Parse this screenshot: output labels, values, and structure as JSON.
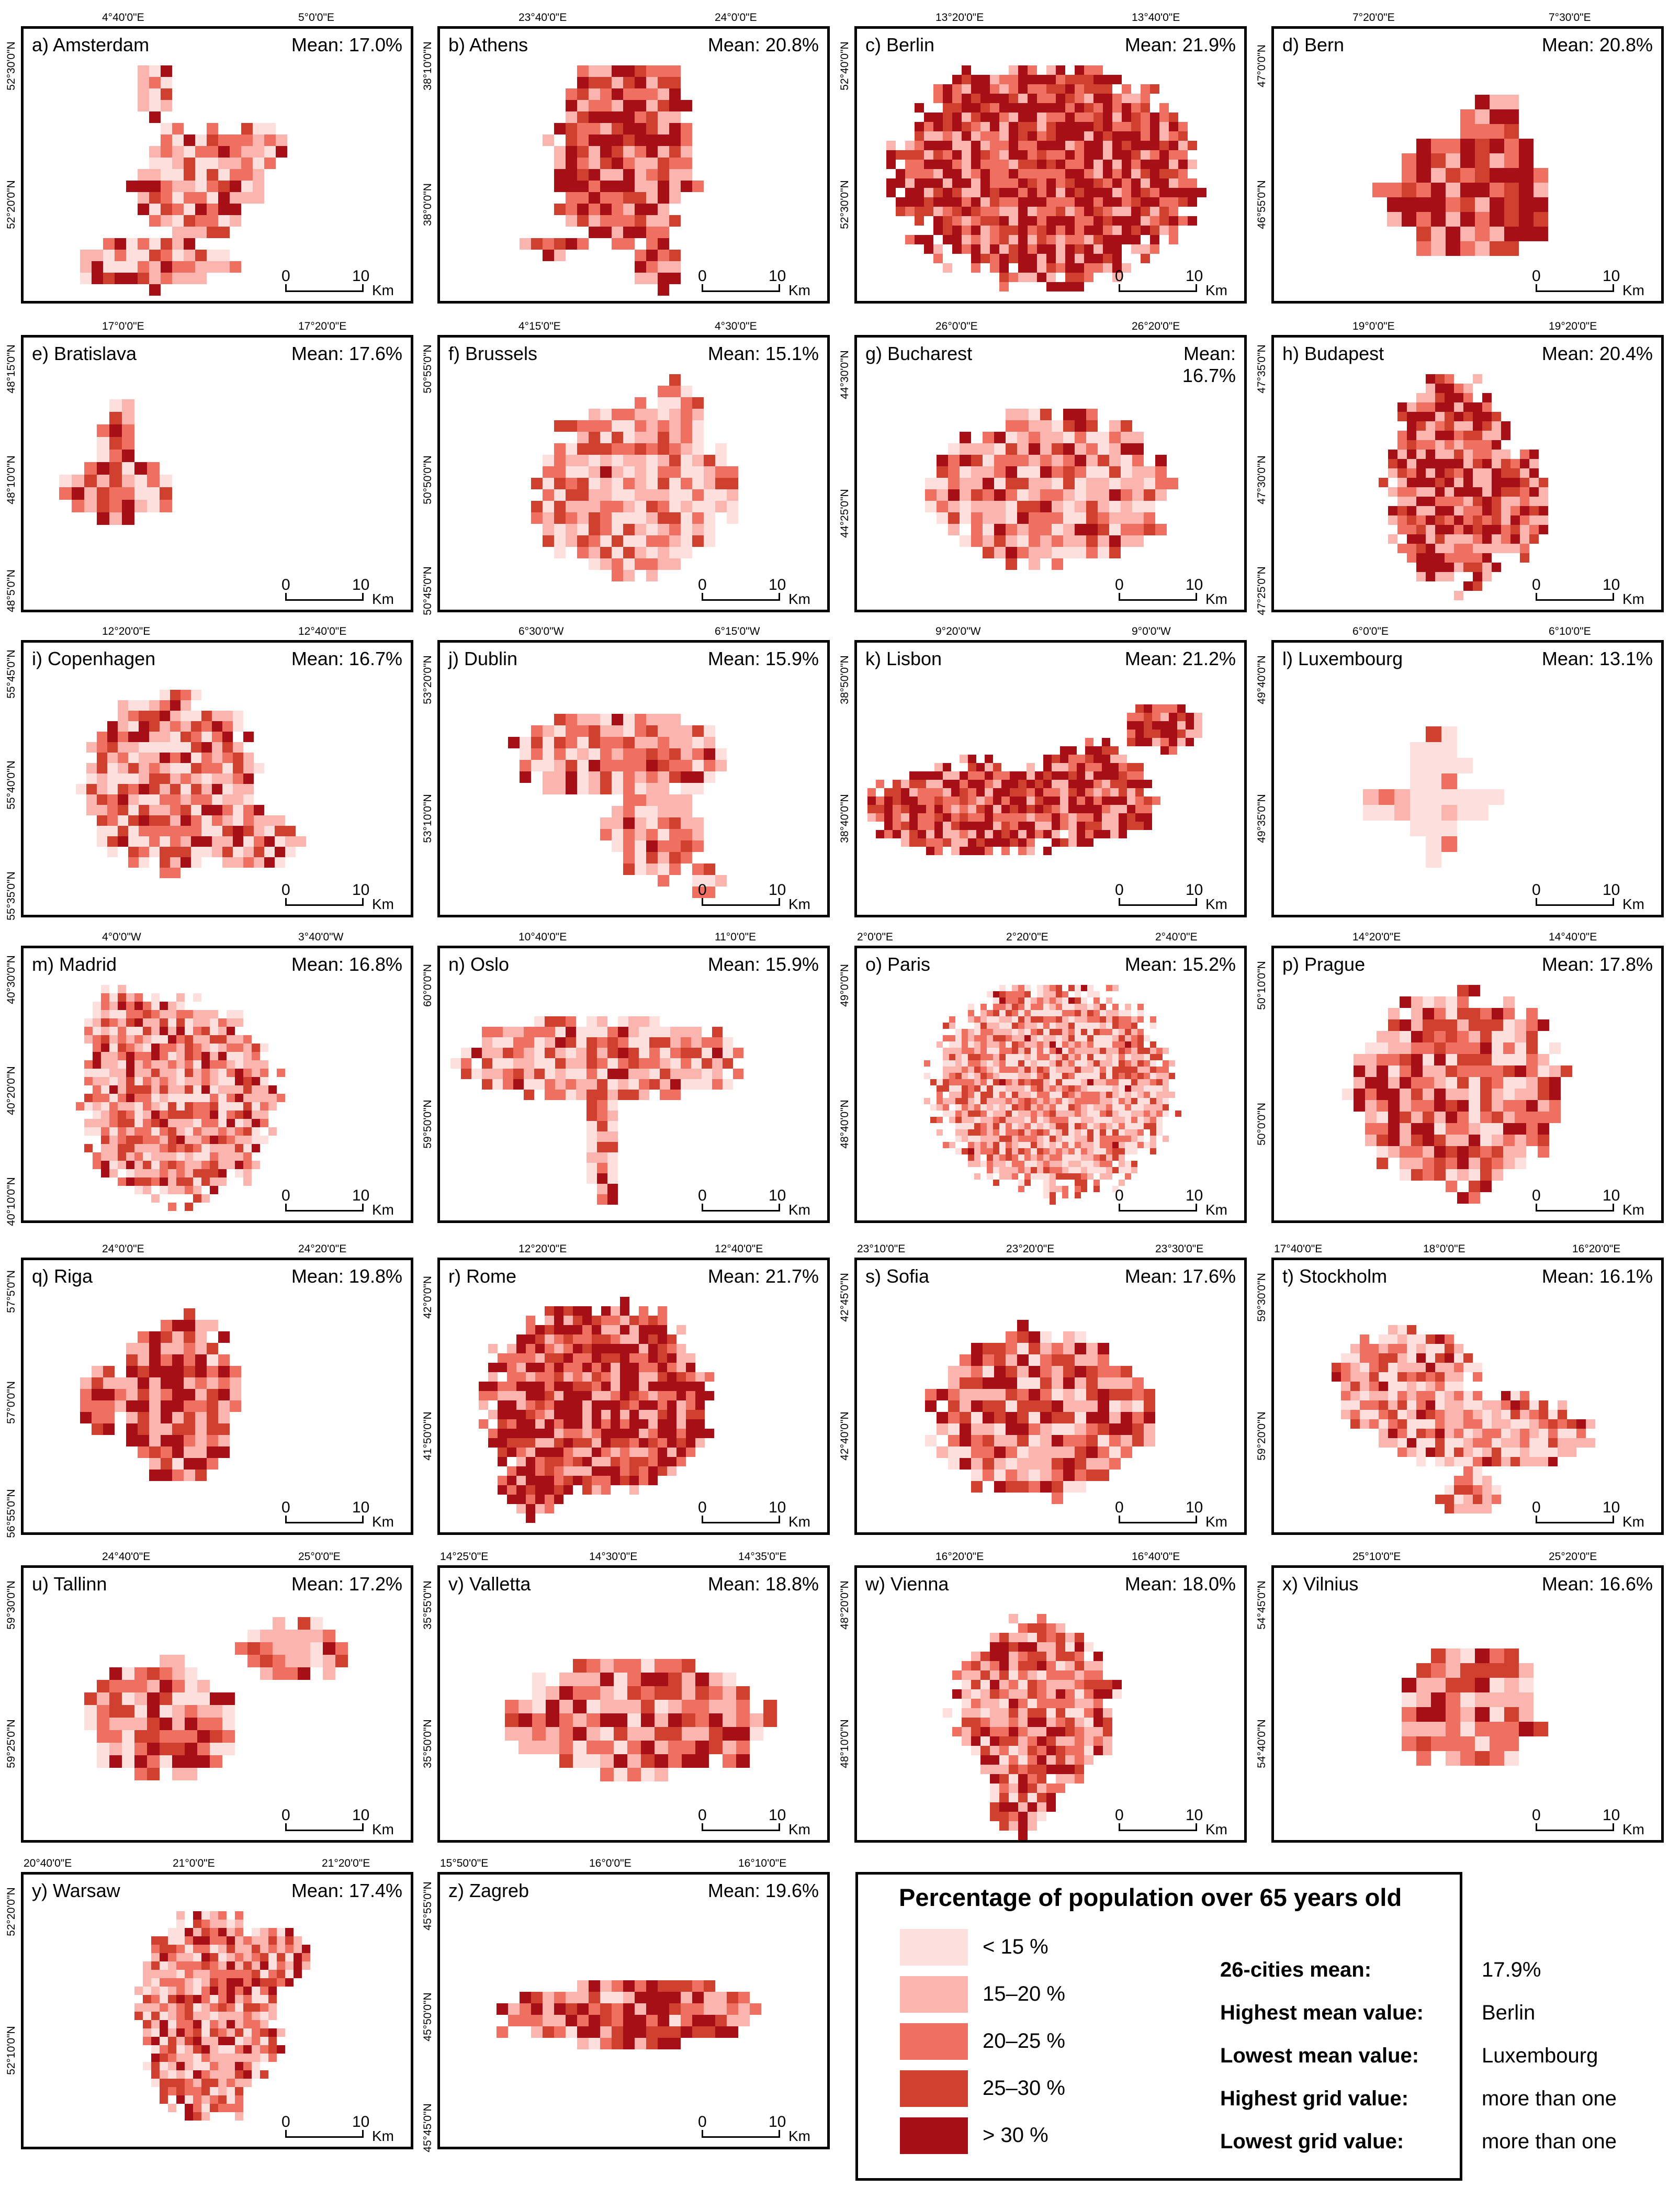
{
  "colors": {
    "c1": "#fde0dd",
    "c2": "#fbb4ae",
    "c3": "#ef6f61",
    "c4": "#d0402f",
    "c5": "#a50f15"
  },
  "cities": [
    {
      "label": "a) Amsterdam",
      "mean": "Mean: 17.0%",
      "lon": [
        "4°40'0\"E",
        "5°0'0\"E"
      ],
      "lat": [
        "52°30'0\"N",
        "52°20'0\"N"
      ],
      "scale_0": "0",
      "scale_10": "10",
      "scale_unit": "Km",
      "shape": "amsterdam"
    },
    {
      "label": "b) Athens",
      "mean": "Mean: 20.8%",
      "lon": [
        "23°40'0\"E",
        "24°0'0\"E"
      ],
      "lat": [
        "38°10'0\"N",
        "38°0'0\"N"
      ],
      "scale_0": "0",
      "scale_10": "10",
      "scale_unit": "Km",
      "shape": "athens"
    },
    {
      "label": "c) Berlin",
      "mean": "Mean: 21.9%",
      "lon": [
        "13°20'0\"E",
        "13°40'0\"E"
      ],
      "lat": [
        "52°40'0\"N",
        "52°30'0\"N"
      ],
      "scale_0": "0",
      "scale_10": "10",
      "scale_unit": "Km",
      "shape": "berlin"
    },
    {
      "label": "d) Bern",
      "mean": "Mean: 20.8%",
      "lon": [
        "7°20'0\"E",
        "7°30'0\"E"
      ],
      "lat": [
        "47°0'0\"N",
        "46°55'0\"N"
      ],
      "scale_0": "0",
      "scale_10": "10",
      "scale_unit": "Km",
      "shape": "bern"
    },
    {
      "label": "e) Bratislava",
      "mean": "Mean: 17.6%",
      "lon": [
        "17°0'0\"E",
        "17°20'0\"E"
      ],
      "lat": [
        "48°15'0\"N",
        "48°10'0\"N",
        "48°5'0\"N"
      ],
      "scale_0": "0",
      "scale_10": "10",
      "scale_unit": "Km",
      "shape": "bratislava"
    },
    {
      "label": "f) Brussels",
      "mean": "Mean: 15.1%",
      "lon": [
        "4°15'0\"E",
        "4°30'0\"E"
      ],
      "lat": [
        "50°55'0\"N",
        "50°50'0\"N",
        "50°45'0\"N"
      ],
      "scale_0": "0",
      "scale_10": "10",
      "scale_unit": "Km",
      "shape": "brussels"
    },
    {
      "label": "g) Bucharest",
      "mean": "Mean: 16.7%",
      "lon": [
        "26°0'0\"E",
        "26°20'0\"E"
      ],
      "lat": [
        "44°30'0\"N",
        "44°25'0\"N"
      ],
      "scale_0": "0",
      "scale_10": "10",
      "scale_unit": "Km",
      "shape": "bucharest"
    },
    {
      "label": "h) Budapest",
      "mean": "Mean: 20.4%",
      "lon": [
        "19°0'0\"E",
        "19°20'0\"E"
      ],
      "lat": [
        "47°35'0\"N",
        "47°30'0\"N",
        "47°25'0\"N"
      ],
      "scale_0": "0",
      "scale_10": "10",
      "scale_unit": "Km",
      "shape": "budapest"
    },
    {
      "label": "i) Copenhagen",
      "mean": "Mean: 16.7%",
      "lon": [
        "12°20'0\"E",
        "12°40'0\"E"
      ],
      "lat": [
        "55°45'0\"N",
        "55°40'0\"N",
        "55°35'0\"N"
      ],
      "scale_0": "0",
      "scale_10": "10",
      "scale_unit": "Km",
      "shape": "copenhagen"
    },
    {
      "label": "j) Dublin",
      "mean": "Mean: 15.9%",
      "lon": [
        "6°30'0\"W",
        "6°15'0\"W"
      ],
      "lat": [
        "53°20'0\"N",
        "53°10'0\"N"
      ],
      "scale_0": "0",
      "scale_10": "10",
      "scale_unit": "Km",
      "shape": "dublin"
    },
    {
      "label": "k) Lisbon",
      "mean": "Mean: 21.2%",
      "lon": [
        "9°20'0\"W",
        "9°0'0\"W"
      ],
      "lat": [
        "38°50'0\"N",
        "38°40'0\"N"
      ],
      "scale_0": "0",
      "scale_10": "10",
      "scale_unit": "Km",
      "shape": "lisbon"
    },
    {
      "label": "l) Luxembourg",
      "mean": "Mean: 13.1%",
      "lon": [
        "6°0'0\"E",
        "6°10'0\"E"
      ],
      "lat": [
        "49°40'0\"N",
        "49°35'0\"N"
      ],
      "scale_0": "0",
      "scale_10": "10",
      "scale_unit": "Km",
      "shape": "luxembourg"
    },
    {
      "label": "m) Madrid",
      "mean": "Mean: 16.8%",
      "lon": [
        "4°0'0\"W",
        "3°40'0\"W"
      ],
      "lat": [
        "40°30'0\"N",
        "40°20'0\"N",
        "40°10'0\"N"
      ],
      "scale_0": "0",
      "scale_10": "10",
      "scale_unit": "Km",
      "shape": "madrid"
    },
    {
      "label": "n) Oslo",
      "mean": "Mean: 15.9%",
      "lon": [
        "10°40'0\"E",
        "11°0'0\"E"
      ],
      "lat": [
        "60°0'0\"N",
        "59°50'0\"N"
      ],
      "scale_0": "0",
      "scale_10": "10",
      "scale_unit": "Km",
      "shape": "oslo"
    },
    {
      "label": "o) Paris",
      "mean": "Mean: 15.2%",
      "lon": [
        "2°0'0\"E",
        "2°20'0\"E",
        "2°40'0\"E"
      ],
      "lat": [
        "49°0'0\"N",
        "48°40'0\"N"
      ],
      "scale_0": "0",
      "scale_10": "10",
      "scale_unit": "Km",
      "shape": "paris"
    },
    {
      "label": "p) Prague",
      "mean": "Mean: 17.8%",
      "lon": [
        "14°20'0\"E",
        "14°40'0\"E"
      ],
      "lat": [
        "50°10'0\"N",
        "50°0'0\"N"
      ],
      "scale_0": "0",
      "scale_10": "10",
      "scale_unit": "Km",
      "shape": "prague"
    },
    {
      "label": "q) Riga",
      "mean": "Mean: 19.8%",
      "lon": [
        "24°0'0\"E",
        "24°20'0\"E"
      ],
      "lat": [
        "57°5'0\"N",
        "57°0'0\"N",
        "56°55'0\"N"
      ],
      "scale_0": "0",
      "scale_10": "10",
      "scale_unit": "Km",
      "shape": "riga"
    },
    {
      "label": "r) Rome",
      "mean": "Mean: 21.7%",
      "lon": [
        "12°20'0\"E",
        "12°40'0\"E"
      ],
      "lat": [
        "42°0'0\"N",
        "41°50'0\"N"
      ],
      "scale_0": "0",
      "scale_10": "10",
      "scale_unit": "Km",
      "shape": "rome"
    },
    {
      "label": "s) Sofia",
      "mean": "Mean: 17.6%",
      "lon": [
        "23°10'0\"E",
        "23°20'0\"E",
        "23°30'0\"E"
      ],
      "lat": [
        "42°45'0\"N",
        "42°40'0\"N"
      ],
      "scale_0": "0",
      "scale_10": "10",
      "scale_unit": "Km",
      "shape": "sofia"
    },
    {
      "label": "t) Stockholm",
      "mean": "Mean: 16.1%",
      "lon": [
        "17°40'0\"E",
        "18°0'0\"E",
        "16°20'0\"E"
      ],
      "lat": [
        "59°30'0\"N",
        "59°20'0\"N"
      ],
      "scale_0": "0",
      "scale_10": "10",
      "scale_unit": "Km",
      "shape": "stockholm"
    },
    {
      "label": "u) Tallinn",
      "mean": "Mean: 17.2%",
      "lon": [
        "24°40'0\"E",
        "25°0'0\"E"
      ],
      "lat": [
        "59°30'0\"N",
        "59°25'0\"N"
      ],
      "scale_0": "0",
      "scale_10": "10",
      "scale_unit": "Km",
      "shape": "tallinn"
    },
    {
      "label": "v) Valletta",
      "mean": "Mean: 18.8%",
      "lon": [
        "14°25'0\"E",
        "14°30'0\"E",
        "14°35'0\"E"
      ],
      "lat": [
        "35°55'0\"N",
        "35°50'0\"N"
      ],
      "scale_0": "0",
      "scale_10": "10",
      "scale_unit": "Km",
      "shape": "valletta"
    },
    {
      "label": "w) Vienna",
      "mean": "Mean: 18.0%",
      "lon": [
        "16°20'0\"E",
        "16°40'0\"E"
      ],
      "lat": [
        "48°20'0\"N",
        "48°10'0\"N"
      ],
      "scale_0": "0",
      "scale_10": "10",
      "scale_unit": "Km",
      "shape": "vienna"
    },
    {
      "label": "x) Vilnius",
      "mean": "Mean: 16.6%",
      "lon": [
        "25°10'0\"E",
        "25°20'0\"E"
      ],
      "lat": [
        "54°45'0\"N",
        "54°40'0\"N"
      ],
      "scale_0": "0",
      "scale_10": "10",
      "scale_unit": "Km",
      "shape": "vilnius"
    },
    {
      "label": "y) Warsaw",
      "mean": "Mean: 17.4%",
      "lon": [
        "20°40'0\"E",
        "21°0'0\"E",
        "21°20'0\"E"
      ],
      "lat": [
        "52°20'0\"N",
        "52°10'0\"N"
      ],
      "scale_0": "0",
      "scale_10": "10",
      "scale_unit": "Km",
      "shape": "warsaw"
    },
    {
      "label": "z) Zagreb",
      "mean": "Mean: 19.6%",
      "lon": [
        "15°50'0\"E",
        "16°0'0\"E",
        "16°10'0\"E"
      ],
      "lat": [
        "45°55'0\"N",
        "45°50'0\"N",
        "45°45'0\"N"
      ],
      "scale_0": "0",
      "scale_10": "10",
      "scale_unit": "Km",
      "shape": "zagreb"
    }
  ],
  "legend": {
    "title": "Percentage of population over 65 years old",
    "classes": [
      {
        "label": "< 15 %",
        "color": "#fde0dd"
      },
      {
        "label": "15–20 %",
        "color": "#fbb4ae"
      },
      {
        "label": "20–25 %",
        "color": "#ef6f61"
      },
      {
        "label": "25–30 %",
        "color": "#d0402f"
      },
      {
        "label": "> 30 %",
        "color": "#a50f15"
      }
    ],
    "stats": [
      {
        "label": "26-cities mean:",
        "value": "17.9%"
      },
      {
        "label": "Highest mean value:",
        "value": "Berlin"
      },
      {
        "label": "Lowest mean value:",
        "value": "Luxembourg"
      },
      {
        "label": "Highest grid value:",
        "value": "more than one"
      },
      {
        "label": "Lowest grid value:",
        "value": "more than one"
      }
    ]
  }
}
